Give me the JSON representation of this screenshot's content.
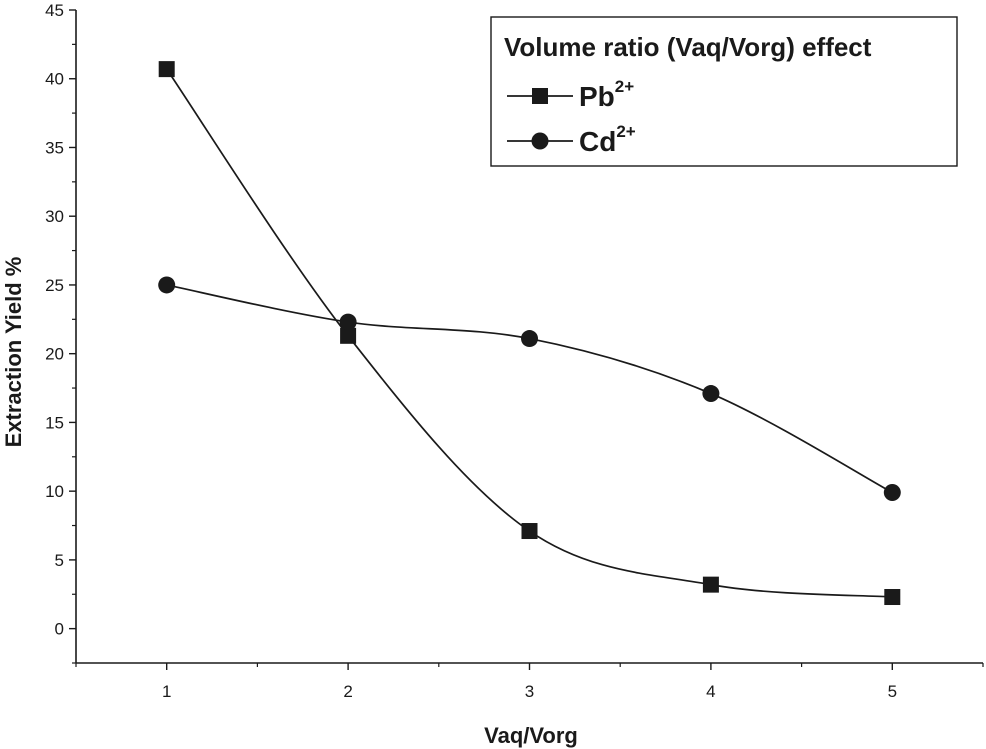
{
  "chart_data": {
    "type": "line",
    "title": "",
    "xlabel": "Vaq/Vorg",
    "ylabel": "Extraction Yield %",
    "xlim": [
      0.5,
      5.5
    ],
    "ylim": [
      -2.5,
      45
    ],
    "x_ticks": [
      1,
      2,
      3,
      4,
      5
    ],
    "y_ticks": [
      0,
      5,
      10,
      15,
      20,
      25,
      30,
      35,
      40,
      45
    ],
    "grid": false,
    "legend": {
      "title": "Volume ratio (Vaq/Vorg) effect",
      "placement": "top-right"
    },
    "x": [
      1,
      2,
      3,
      4,
      5
    ],
    "series": [
      {
        "name": "Pb",
        "sup": "2+",
        "marker": "square",
        "values": [
          40.7,
          21.3,
          7.1,
          3.2,
          2.3
        ]
      },
      {
        "name": "Cd",
        "sup": "2+",
        "marker": "circle",
        "values": [
          25.0,
          22.3,
          21.1,
          17.1,
          9.9
        ]
      }
    ]
  }
}
